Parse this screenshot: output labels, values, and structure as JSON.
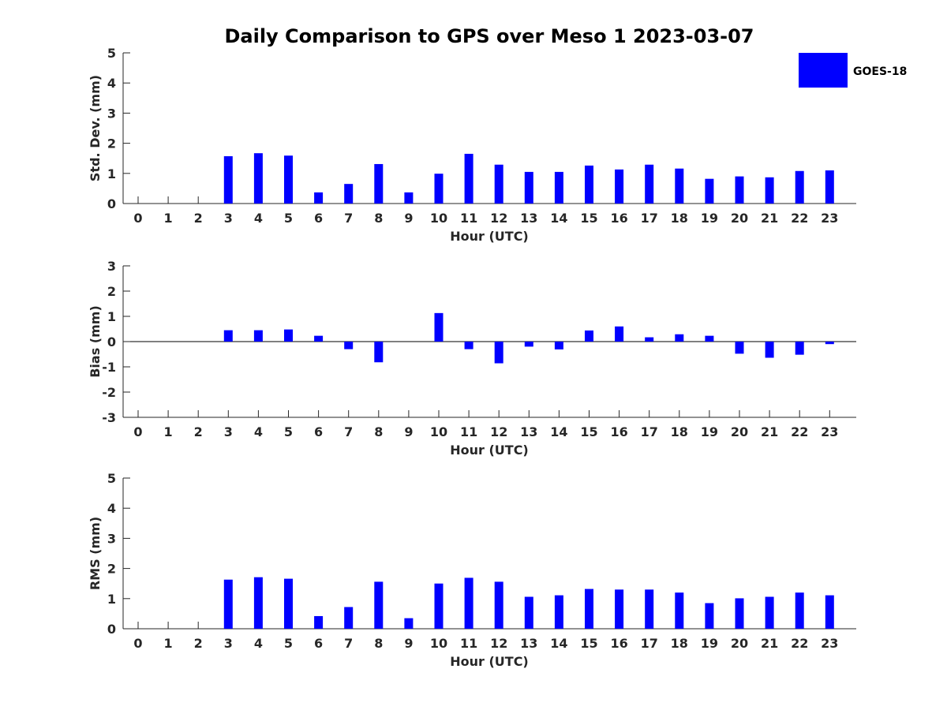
{
  "title": "Daily Comparison to GPS over Meso 1 2023-03-07",
  "legend": {
    "label": "GOES-18",
    "color": "#0000ff",
    "position": "top-right"
  },
  "chart_data": [
    {
      "type": "bar",
      "title": "Daily Comparison to GPS over Meso 1 2023-03-07",
      "xlabel": "Hour (UTC)",
      "ylabel": "Std. Dev. (mm)",
      "ylim": [
        0,
        5
      ],
      "yticks": [
        0,
        1,
        2,
        3,
        4,
        5
      ],
      "categories": [
        "0",
        "1",
        "2",
        "3",
        "4",
        "5",
        "6",
        "7",
        "8",
        "9",
        "10",
        "11",
        "12",
        "13",
        "14",
        "15",
        "16",
        "17",
        "18",
        "19",
        "20",
        "21",
        "22",
        "23"
      ],
      "series": [
        {
          "name": "GOES-18",
          "color": "#0000ff",
          "values": [
            0,
            0,
            0,
            1.57,
            1.67,
            1.59,
            0.37,
            0.65,
            1.31,
            0.37,
            0.99,
            1.65,
            1.29,
            1.05,
            1.05,
            1.26,
            1.13,
            1.29,
            1.16,
            0.82,
            0.9,
            0.87,
            1.08,
            1.1
          ]
        }
      ]
    },
    {
      "type": "bar",
      "xlabel": "Hour (UTC)",
      "ylabel": "Bias (mm)",
      "ylim": [
        -3,
        3
      ],
      "yticks": [
        -3,
        -2,
        -1,
        0,
        1,
        2,
        3
      ],
      "zero_line": true,
      "categories": [
        "0",
        "1",
        "2",
        "3",
        "4",
        "5",
        "6",
        "7",
        "8",
        "9",
        "10",
        "11",
        "12",
        "13",
        "14",
        "15",
        "16",
        "17",
        "18",
        "19",
        "20",
        "21",
        "22",
        "23"
      ],
      "series": [
        {
          "name": "GOES-18",
          "color": "#0000ff",
          "values": [
            0,
            0,
            0,
            0.45,
            0.45,
            0.48,
            0.23,
            -0.3,
            -0.82,
            0,
            1.13,
            -0.3,
            -0.86,
            -0.2,
            -0.31,
            0.44,
            0.6,
            0.17,
            0.29,
            0.23,
            -0.48,
            -0.64,
            -0.52,
            -0.1
          ]
        }
      ]
    },
    {
      "type": "bar",
      "xlabel": "Hour (UTC)",
      "ylabel": "RMS (mm)",
      "ylim": [
        0,
        5
      ],
      "yticks": [
        0,
        1,
        2,
        3,
        4,
        5
      ],
      "categories": [
        "0",
        "1",
        "2",
        "3",
        "4",
        "5",
        "6",
        "7",
        "8",
        "9",
        "10",
        "11",
        "12",
        "13",
        "14",
        "15",
        "16",
        "17",
        "18",
        "19",
        "20",
        "21",
        "22",
        "23"
      ],
      "series": [
        {
          "name": "GOES-18",
          "color": "#0000ff",
          "values": [
            0,
            0,
            0,
            1.63,
            1.71,
            1.66,
            0.42,
            0.72,
            1.56,
            0.35,
            1.5,
            1.69,
            1.56,
            1.06,
            1.11,
            1.32,
            1.3,
            1.3,
            1.2,
            0.85,
            1.01,
            1.06,
            1.2,
            1.11
          ]
        }
      ]
    }
  ]
}
